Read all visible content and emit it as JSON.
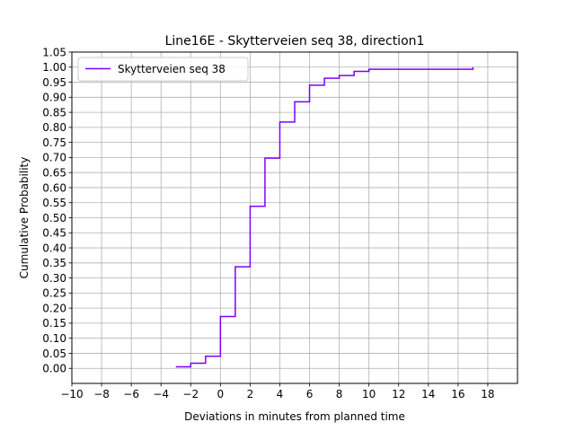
{
  "chart_data": {
    "type": "line",
    "title": "Line16E - Skytterveien seq 38, direction1",
    "xlabel": "Deviations in minutes from planned time",
    "ylabel": "Cumulative Probability",
    "xlim": [
      -10,
      20
    ],
    "ylim": [
      -0.05,
      1.05
    ],
    "xticks": [
      -10,
      -8,
      -6,
      -4,
      -2,
      0,
      2,
      4,
      6,
      8,
      10,
      12,
      14,
      16,
      18
    ],
    "xtick_labels": [
      "−10",
      "−8",
      "−6",
      "−4",
      "−2",
      "0",
      "2",
      "4",
      "6",
      "8",
      "10",
      "12",
      "14",
      "16",
      "18"
    ],
    "yticks": [
      0,
      0.05,
      0.1,
      0.15,
      0.2,
      0.25,
      0.3,
      0.35,
      0.4,
      0.45,
      0.5,
      0.55,
      0.6,
      0.65,
      0.7,
      0.75,
      0.8,
      0.85,
      0.9,
      0.95,
      1.0,
      1.05
    ],
    "ytick_labels": [
      "0.00",
      "0.05",
      "0.10",
      "0.15",
      "0.20",
      "0.25",
      "0.30",
      "0.35",
      "0.40",
      "0.45",
      "0.50",
      "0.55",
      "0.60",
      "0.65",
      "0.70",
      "0.75",
      "0.80",
      "0.85",
      "0.90",
      "0.95",
      "1.00",
      "1.05"
    ],
    "grid": true,
    "legend": "upper-left",
    "series": [
      {
        "name": "Skytterveien seq 38",
        "color": "#7f00ff",
        "step": "post",
        "x": [
          -3,
          -2,
          -1,
          0,
          1,
          2,
          3,
          4,
          5,
          6,
          7,
          8,
          9,
          10,
          17
        ],
        "y": [
          0.005,
          0.017,
          0.04,
          0.172,
          0.337,
          0.538,
          0.698,
          0.818,
          0.885,
          0.94,
          0.963,
          0.972,
          0.986,
          0.993,
          0.995
        ]
      }
    ],
    "series_end": {
      "x": 17,
      "y": 1.0
    }
  }
}
